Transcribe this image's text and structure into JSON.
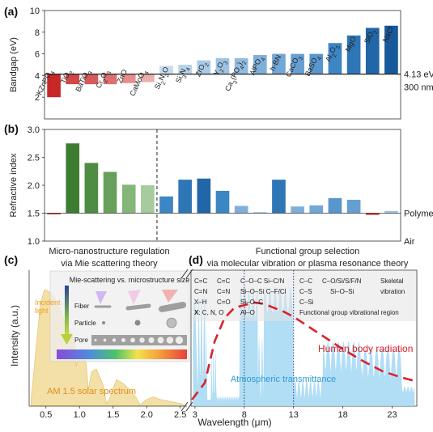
{
  "chart_data": [
    {
      "panel": "(a)",
      "type": "bar",
      "ylabel": "Bandgap (eV)",
      "ylim": [
        0,
        10
      ],
      "yticks": [
        2,
        4,
        6,
        8,
        10
      ],
      "baseline": 4.13,
      "baseline_labels": [
        "4.13 eV",
        "300 nm"
      ],
      "categories": [
        "KZnPO4",
        "TiO2",
        "BaTiO3",
        "Cr2O3",
        "ZnO",
        "CaMoO4",
        "Si2N2O",
        "Si3N4",
        "ZrO2",
        "Y2O3",
        "Ca3(PO4)2",
        "AlPO4",
        "h-BN",
        "CaCO3",
        "BaSO4",
        "Al2O3",
        "MgO",
        "SiO2",
        "NaCl"
      ],
      "category_labels": [
        {
          "main": "KZnPO",
          "sub": "4"
        },
        {
          "main": "TiO",
          "sub": "2"
        },
        {
          "main": "BaTiO",
          "sub": "3"
        },
        {
          "main": "Cr",
          "sub": "2",
          "main2": "O",
          "sub2": "3"
        },
        {
          "main": "ZnO"
        },
        {
          "main": "CaMoO",
          "sub": "4"
        },
        {
          "main": "Si",
          "sub": "2",
          "main2": "N",
          "sub2": "2",
          "main3": "O"
        },
        {
          "main": "Si",
          "sub": "3",
          "main2": "N",
          "sub2": "4"
        },
        {
          "main": "ZrO",
          "sub": "2"
        },
        {
          "main": "Y",
          "sub": "2",
          "main2": "O",
          "sub2": "3"
        },
        {
          "main": "Ca",
          "sub": "3",
          "main2": "(PO",
          "sub2": "4",
          "main3": ")",
          "sub3": "2"
        },
        {
          "main": "AlPO",
          "sub": "4"
        },
        {
          "main": "h-BN"
        },
        {
          "main": "CaCO",
          "sub": "3"
        },
        {
          "main": "BaSO",
          "sub": "4"
        },
        {
          "main": "Al",
          "sub": "2",
          "main2": "O",
          "sub2": "3"
        },
        {
          "main": "MgO"
        },
        {
          "main": "SiO",
          "sub": "2"
        },
        {
          "main": "NaCl"
        }
      ],
      "values": [
        2.0,
        3.2,
        3.2,
        3.2,
        3.3,
        3.4,
        4.9,
        5.0,
        5.4,
        5.6,
        5.6,
        5.9,
        6.0,
        6.0,
        6.0,
        7.0,
        7.7,
        8.4,
        8.6
      ],
      "colors": [
        "#c62828",
        "#cf4848",
        "#d55a5a",
        "#dc7070",
        "#e58d8d",
        "#ecadad",
        "#c7dcef",
        "#bad3ec",
        "#aacbe8",
        "#9ec3e4",
        "#91bbe0",
        "#80b0da",
        "#73a7d5",
        "#659fd1",
        "#5896cc",
        "#3d86c4",
        "#2f76b6",
        "#2167a8",
        "#17599a"
      ]
    },
    {
      "panel": "(b)",
      "type": "bar",
      "ylabel": "Refractive index",
      "ylim": [
        1.0,
        3.0
      ],
      "yticks": [
        1.0,
        1.5,
        2.0,
        2.5,
        3.0
      ],
      "reference_lines": [
        {
          "value": 1.5,
          "label": "Polymer"
        },
        {
          "value": 1.0,
          "label": "Air"
        }
      ],
      "values": [
        1.48,
        2.75,
        2.4,
        2.24,
        2.01,
        2.0,
        1.8,
        2.1,
        2.12,
        1.9,
        1.63,
        1.52,
        2.1,
        1.62,
        1.64,
        1.77,
        1.74,
        1.47,
        1.54
      ],
      "colors": [
        "#c62828",
        "#3d7d32",
        "#4f8c43",
        "#68a05b",
        "#85b679",
        "#a6cb9c",
        "#3d86c4",
        "#2f76b6",
        "#2167a8",
        "#3d86c4",
        "#80b0da",
        "#a8c8e6",
        "#2f76b6",
        "#80b0da",
        "#73a7d5",
        "#5896cc",
        "#659fd1",
        "#c62828",
        "#9ec3e4"
      ],
      "annotations": [
        "Micro-nanostructure regulation",
        "via Mie scattering theory",
        "Functional group selection",
        "via molecular vibration or plasma resonance theory"
      ]
    },
    {
      "panel": "(c)",
      "type": "area",
      "xlabel": "Wavelength (μm)",
      "ylabel": "Intensity (a.u.)",
      "xlim": [
        0.25,
        2.6
      ],
      "xticks": [
        0.5,
        1.0,
        1.5,
        2.0,
        2.5
      ],
      "series": [
        {
          "name": "AM 1.5 solar spectrum",
          "color": "#e8c36a"
        }
      ],
      "x": [
        0.28,
        0.35,
        0.42,
        0.48,
        0.55,
        0.62,
        0.7,
        0.78,
        0.85,
        0.93,
        0.95,
        1.0,
        1.05,
        1.1,
        1.13,
        1.18,
        1.25,
        1.35,
        1.4,
        1.45,
        1.55,
        1.65,
        1.75,
        1.85,
        1.9,
        2.0,
        2.1,
        2.2,
        2.3,
        2.4,
        2.5,
        2.55
      ],
      "y": [
        0.05,
        0.42,
        0.78,
        0.88,
        0.86,
        0.82,
        0.74,
        0.64,
        0.58,
        0.48,
        0.3,
        0.4,
        0.38,
        0.32,
        0.12,
        0.26,
        0.28,
        0.16,
        0.02,
        0.06,
        0.2,
        0.17,
        0.12,
        0.06,
        0.01,
        0.05,
        0.07,
        0.05,
        0.04,
        0.03,
        0.02,
        0.01
      ],
      "annotations": {
        "incident_light": [
          "Incident",
          "light"
        ],
        "inset_title": "Mie-scattering vs. microstructure size",
        "rows": [
          "Fiber",
          "Particle",
          "Pore"
        ]
      }
    },
    {
      "panel": "(d)",
      "type": "line",
      "xlim": [
        2.6,
        25.5
      ],
      "xticks": [
        3,
        8,
        13,
        18,
        23
      ],
      "series": [
        {
          "name": "Human body radiation",
          "color": "#d8222a",
          "style": "dashed"
        },
        {
          "name": "Atmospheric transmittance",
          "color": "#a8d8f2",
          "style": "area"
        }
      ],
      "x": [
        2.7,
        4,
        5,
        6,
        7,
        8,
        9,
        10,
        11,
        12,
        13,
        14,
        16,
        18,
        20,
        22,
        24,
        25.5
      ],
      "y": [
        0.05,
        0.18,
        0.5,
        0.68,
        0.76,
        0.78,
        0.8,
        0.79,
        0.76,
        0.73,
        0.69,
        0.64,
        0.54,
        0.44,
        0.35,
        0.27,
        0.22,
        0.19
      ],
      "windows": [
        8,
        13
      ],
      "groups_col1": [
        [
          "C=C",
          "C=C"
        ],
        [
          "C=N",
          "C=N"
        ],
        [
          "X–H",
          "C=O"
        ]
      ],
      "group_x_line": {
        "bold": "X",
        "rest": ": C, N, O"
      },
      "groups_col2": [
        "C–O–C Si–C/N",
        "Si–O–Si C–F/Cl",
        "Si–O–C",
        "Al–O"
      ],
      "groups_col3": [
        "C–C",
        "C–S",
        "C–Si"
      ],
      "groups_col4": [
        "C–O/Si/S/F/N",
        "Si–O–Si"
      ],
      "skeletal": [
        "Skeletal",
        "vibration"
      ],
      "region_label": "Functional group vibrational region"
    }
  ],
  "labels": {
    "panel_a": "(a)",
    "panel_b": "(b)",
    "panel_c": "(c)",
    "panel_d": "(d)"
  }
}
